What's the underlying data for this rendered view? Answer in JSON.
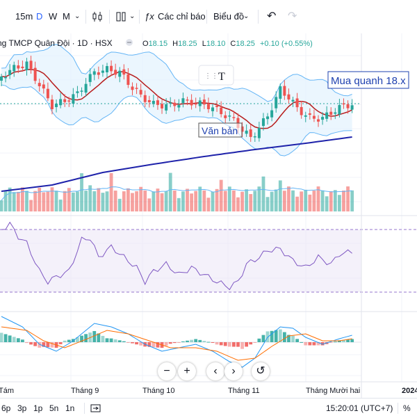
{
  "toolbar": {
    "intervals": [
      "15m",
      "D",
      "W",
      "M"
    ],
    "active_interval": "D",
    "indicators_label": "Các chỉ báo",
    "chart_label": "Biểu đồ",
    "fx_icon": "function-icon",
    "undo_icon": "undo-icon",
    "redo_icon": "redo-icon"
  },
  "legend": {
    "symbol": "ng TMCP Quân Đội · 1D · HSX",
    "o_label": "O",
    "o_value": "18.15",
    "h_label": "H",
    "h_value": "18.25",
    "l_label": "L",
    "l_value": "18.10",
    "c_label": "C",
    "c_value": "18.25",
    "change": "+0.10 (+0.55%)"
  },
  "annotations": {
    "buy_note": "Mua quanh 18.x",
    "text_note": "Văn bản",
    "text_tool_glyph": "T"
  },
  "chart_data": {
    "type": "candlestick",
    "x_labels": [
      "Tám",
      "Tháng 9",
      "Tháng 10",
      "Tháng 11",
      "Tháng Mười hai",
      "2024"
    ],
    "n_bars": 84,
    "colors": {
      "up": "#26a69a",
      "down": "#ef5350",
      "ma_short": "#b71c1c",
      "ma_long": "#1e22aa",
      "bollinger": "#64b5f6",
      "rsi": "#7e57c2",
      "macd": "#2196f3",
      "signal": "#ff6d00"
    }
  },
  "controls": {
    "zoom_out": "−",
    "zoom_in": "+",
    "scroll_left": "‹",
    "scroll_right": "›",
    "reset": "↺"
  },
  "bottom": {
    "ranges": [
      "6p",
      "3p",
      "1p",
      "5n",
      "1n"
    ],
    "time": "15:20:01 (UTC+7)",
    "percent": "%"
  }
}
